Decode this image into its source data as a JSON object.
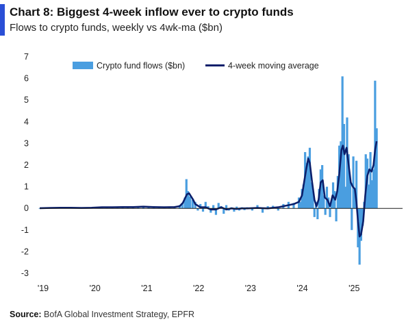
{
  "header": {
    "title": "Chart 8: Biggest 4-week inflow ever to crypto funds",
    "subtitle": "Flows to crypto funds, weekly vs 4wk-ma ($bn)"
  },
  "footer": {
    "source_label": "Source:",
    "source_text": "BofA Global Investment Strategy, EPFR"
  },
  "colors": {
    "accent": "#2a4fd6",
    "flows": "#4a9ee0",
    "ma": "#0b1f6b"
  },
  "chart_data": {
    "type": "bar",
    "title": "Biggest 4-week inflow ever to crypto funds",
    "ylabel": "$bn",
    "xlabel": "",
    "ylim": [
      -3,
      7
    ],
    "yticks": [
      7,
      6,
      5,
      4,
      3,
      2,
      1,
      0,
      -1,
      -2,
      -3
    ],
    "xlim": [
      2019.0,
      2026.0
    ],
    "xticks": [
      {
        "label": "'19",
        "year": 2019
      },
      {
        "label": "'20",
        "year": 2020
      },
      {
        "label": "'21",
        "year": 2021
      },
      {
        "label": "'22",
        "year": 2022
      },
      {
        "label": "'23",
        "year": 2023
      },
      {
        "label": "'24",
        "year": 2024
      },
      {
        "label": "'25",
        "year": 2025
      }
    ],
    "legend_position": "top",
    "series": [
      {
        "name": "Crypto fund flows ($bn)",
        "kind": "bar",
        "points": [
          [
            2019.0,
            0.01
          ],
          [
            2019.1,
            0.03
          ],
          [
            2019.2,
            0.02
          ],
          [
            2019.3,
            0.04
          ],
          [
            2019.4,
            0.02
          ],
          [
            2019.5,
            0.05
          ],
          [
            2019.6,
            0.03
          ],
          [
            2019.7,
            0.02
          ],
          [
            2019.8,
            0.03
          ],
          [
            2019.9,
            0.02
          ],
          [
            2020.0,
            0.04
          ],
          [
            2020.1,
            0.06
          ],
          [
            2020.2,
            0.05
          ],
          [
            2020.3,
            0.04
          ],
          [
            2020.4,
            0.06
          ],
          [
            2020.5,
            0.08
          ],
          [
            2020.6,
            0.05
          ],
          [
            2020.7,
            0.07
          ],
          [
            2020.8,
            0.05
          ],
          [
            2020.9,
            0.09
          ],
          [
            2021.0,
            0.1
          ],
          [
            2021.1,
            0.08
          ],
          [
            2021.2,
            0.05
          ],
          [
            2021.3,
            0.06
          ],
          [
            2021.4,
            0.04
          ],
          [
            2021.5,
            0.05
          ],
          [
            2021.6,
            0.08
          ],
          [
            2021.7,
            0.15
          ],
          [
            2021.75,
            0.25
          ],
          [
            2021.8,
            0.5
          ],
          [
            2021.83,
            1.35
          ],
          [
            2021.86,
            0.8
          ],
          [
            2021.9,
            0.55
          ],
          [
            2021.95,
            0.4
          ],
          [
            2022.0,
            0.3
          ],
          [
            2022.05,
            -0.1
          ],
          [
            2022.1,
            0.2
          ],
          [
            2022.15,
            -0.15
          ],
          [
            2022.2,
            0.3
          ],
          [
            2022.25,
            0.1
          ],
          [
            2022.3,
            -0.2
          ],
          [
            2022.35,
            0.15
          ],
          [
            2022.4,
            -0.3
          ],
          [
            2022.45,
            0.25
          ],
          [
            2022.5,
            0.1
          ],
          [
            2022.55,
            -0.25
          ],
          [
            2022.6,
            0.15
          ],
          [
            2022.65,
            -0.1
          ],
          [
            2022.7,
            0.05
          ],
          [
            2022.75,
            -0.15
          ],
          [
            2022.8,
            0.08
          ],
          [
            2022.85,
            -0.1
          ],
          [
            2022.9,
            0.05
          ],
          [
            2022.95,
            -0.08
          ],
          [
            2023.0,
            0.05
          ],
          [
            2023.1,
            -0.1
          ],
          [
            2023.2,
            0.15
          ],
          [
            2023.3,
            -0.2
          ],
          [
            2023.4,
            0.1
          ],
          [
            2023.5,
            0.12
          ],
          [
            2023.6,
            -0.1
          ],
          [
            2023.7,
            0.2
          ],
          [
            2023.8,
            0.3
          ],
          [
            2023.9,
            0.25
          ],
          [
            2024.0,
            0.5
          ],
          [
            2024.03,
            0.3
          ],
          [
            2024.06,
            0.9
          ],
          [
            2024.09,
            1.1
          ],
          [
            2024.12,
            2.6
          ],
          [
            2024.15,
            2.1
          ],
          [
            2024.18,
            2.4
          ],
          [
            2024.21,
            2.8
          ],
          [
            2024.24,
            1.2
          ],
          [
            2024.27,
            0.8
          ],
          [
            2024.3,
            -0.4
          ],
          [
            2024.33,
            0.3
          ],
          [
            2024.36,
            -0.5
          ],
          [
            2024.39,
            0.9
          ],
          [
            2024.42,
            1.8
          ],
          [
            2024.45,
            2.0
          ],
          [
            2024.48,
            0.6
          ],
          [
            2024.51,
            -0.3
          ],
          [
            2024.54,
            1.0
          ],
          [
            2024.57,
            0.5
          ],
          [
            2024.6,
            -0.4
          ],
          [
            2024.63,
            0.3
          ],
          [
            2024.66,
            1.2
          ],
          [
            2024.69,
            0.8
          ],
          [
            2024.72,
            -0.6
          ],
          [
            2024.75,
            1.5
          ],
          [
            2024.78,
            2.9
          ],
          [
            2024.81,
            3.1
          ],
          [
            2024.84,
            6.1
          ],
          [
            2024.87,
            3.9
          ],
          [
            2024.9,
            1.0
          ],
          [
            2024.93,
            4.2
          ],
          [
            2024.96,
            2.5
          ],
          [
            2024.99,
            1.2
          ],
          [
            2025.02,
            -1.0
          ],
          [
            2025.05,
            2.4
          ],
          [
            2025.08,
            0.8
          ],
          [
            2025.11,
            2.2
          ],
          [
            2025.14,
            -1.8
          ],
          [
            2025.17,
            -2.6
          ],
          [
            2025.2,
            -1.5
          ],
          [
            2025.23,
            -0.8
          ],
          [
            2025.26,
            0.3
          ],
          [
            2025.29,
            2.5
          ],
          [
            2025.32,
            2.3
          ],
          [
            2025.35,
            1.1
          ],
          [
            2025.38,
            2.6
          ],
          [
            2025.41,
            1.3
          ],
          [
            2025.44,
            1.8
          ],
          [
            2025.47,
            5.9
          ],
          [
            2025.5,
            3.7
          ]
        ]
      },
      {
        "name": "4-week moving average",
        "kind": "line",
        "points": [
          [
            2019.0,
            0.01
          ],
          [
            2019.2,
            0.02
          ],
          [
            2019.4,
            0.03
          ],
          [
            2019.6,
            0.03
          ],
          [
            2019.8,
            0.02
          ],
          [
            2020.0,
            0.03
          ],
          [
            2020.2,
            0.05
          ],
          [
            2020.4,
            0.05
          ],
          [
            2020.6,
            0.06
          ],
          [
            2020.8,
            0.06
          ],
          [
            2021.0,
            0.08
          ],
          [
            2021.2,
            0.06
          ],
          [
            2021.4,
            0.05
          ],
          [
            2021.6,
            0.06
          ],
          [
            2021.7,
            0.1
          ],
          [
            2021.76,
            0.25
          ],
          [
            2021.8,
            0.45
          ],
          [
            2021.84,
            0.65
          ],
          [
            2021.88,
            0.7
          ],
          [
            2021.92,
            0.55
          ],
          [
            2021.96,
            0.4
          ],
          [
            2022.0,
            0.2
          ],
          [
            2022.1,
            0.05
          ],
          [
            2022.2,
            0.05
          ],
          [
            2022.3,
            -0.05
          ],
          [
            2022.4,
            -0.05
          ],
          [
            2022.5,
            0.05
          ],
          [
            2022.6,
            -0.05
          ],
          [
            2022.7,
            0.0
          ],
          [
            2022.8,
            -0.03
          ],
          [
            2022.9,
            0.0
          ],
          [
            2023.0,
            0.0
          ],
          [
            2023.2,
            0.02
          ],
          [
            2023.4,
            0.0
          ],
          [
            2023.6,
            0.05
          ],
          [
            2023.8,
            0.15
          ],
          [
            2023.9,
            0.2
          ],
          [
            2024.0,
            0.3
          ],
          [
            2024.06,
            0.6
          ],
          [
            2024.1,
            1.2
          ],
          [
            2024.14,
            1.8
          ],
          [
            2024.18,
            2.3
          ],
          [
            2024.21,
            2.1
          ],
          [
            2024.25,
            1.3
          ],
          [
            2024.3,
            0.4
          ],
          [
            2024.34,
            0.1
          ],
          [
            2024.38,
            0.4
          ],
          [
            2024.42,
            1.2
          ],
          [
            2024.46,
            1.3
          ],
          [
            2024.5,
            0.5
          ],
          [
            2024.55,
            0.4
          ],
          [
            2024.6,
            0.1
          ],
          [
            2024.65,
            0.6
          ],
          [
            2024.7,
            0.4
          ],
          [
            2024.74,
            0.8
          ],
          [
            2024.78,
            1.6
          ],
          [
            2024.82,
            2.7
          ],
          [
            2024.85,
            2.9
          ],
          [
            2024.88,
            2.5
          ],
          [
            2024.92,
            2.8
          ],
          [
            2024.96,
            2.0
          ],
          [
            2025.0,
            1.2
          ],
          [
            2025.04,
            1.0
          ],
          [
            2025.08,
            0.9
          ],
          [
            2025.11,
            0.3
          ],
          [
            2025.14,
            -0.6
          ],
          [
            2025.17,
            -1.3
          ],
          [
            2025.2,
            -1.2
          ],
          [
            2025.24,
            -0.6
          ],
          [
            2025.28,
            0.6
          ],
          [
            2025.32,
            1.5
          ],
          [
            2025.36,
            1.8
          ],
          [
            2025.4,
            1.7
          ],
          [
            2025.44,
            2.0
          ],
          [
            2025.47,
            2.7
          ],
          [
            2025.5,
            3.1
          ]
        ]
      }
    ]
  }
}
